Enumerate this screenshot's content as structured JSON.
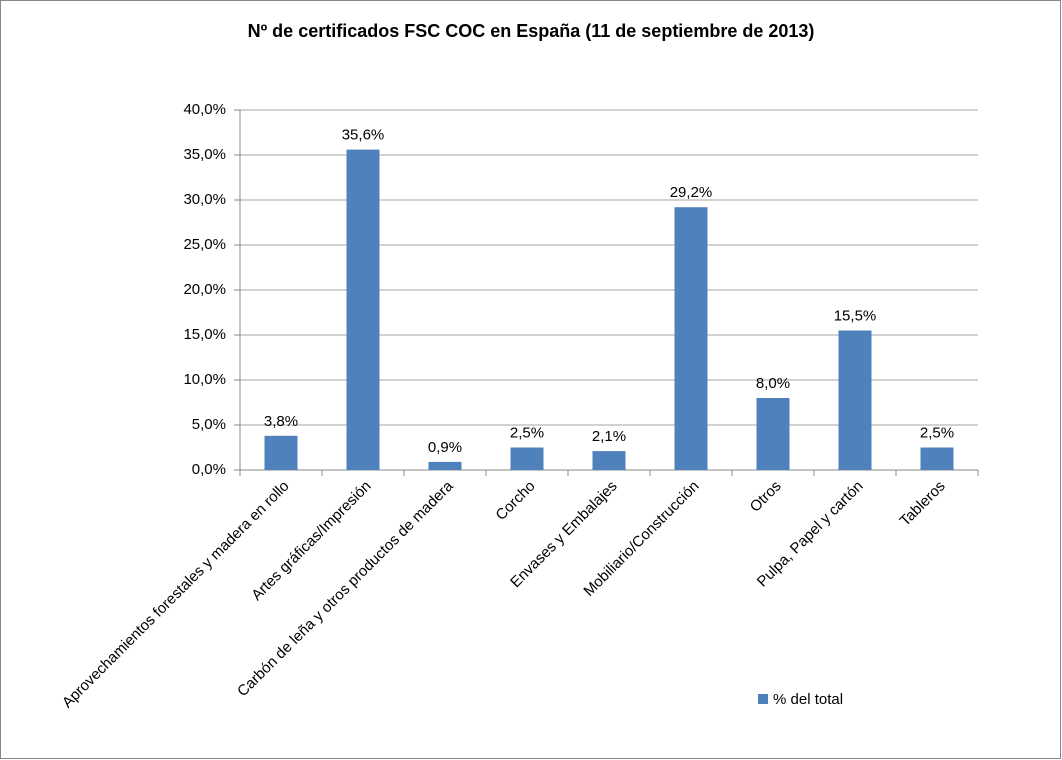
{
  "chart_data": {
    "type": "bar",
    "title": "Nº de certificados FSC COC en España  (11 de septiembre de 2013)",
    "categories": [
      "Aprovechamientos forestales y madera en rollo",
      "Artes gráficas/Impresión",
      "Carbón de leña y otros productos de madera",
      "Corcho",
      "Envases y Embalajes",
      "Mobiliario/Construcción",
      "Otros",
      "Pulpa, Papel y cartón",
      "Tableros"
    ],
    "series": [
      {
        "name": "% del total",
        "color": "#4f81bd",
        "values": [
          3.8,
          35.6,
          0.9,
          2.5,
          2.1,
          29.2,
          8.0,
          15.5,
          2.5
        ],
        "value_labels": [
          "3,8%",
          "35,6%",
          "0,9%",
          "2,5%",
          "2,1%",
          "29,2%",
          "8,0%",
          "15,5%",
          "2,5%"
        ]
      }
    ],
    "ylim": [
      0,
      40
    ],
    "yticks": [
      {
        "value": 0,
        "label": "0,0%"
      },
      {
        "value": 5,
        "label": "5,0%"
      },
      {
        "value": 10,
        "label": "10,0%"
      },
      {
        "value": 15,
        "label": "15,0%"
      },
      {
        "value": 20,
        "label": "20,0%"
      },
      {
        "value": 25,
        "label": "25,0%"
      },
      {
        "value": 30,
        "label": "30,0%"
      },
      {
        "value": 35,
        "label": "35,0%"
      },
      {
        "value": 40,
        "label": "40,0%"
      }
    ],
    "grid": true,
    "legend": "bottom-right"
  }
}
